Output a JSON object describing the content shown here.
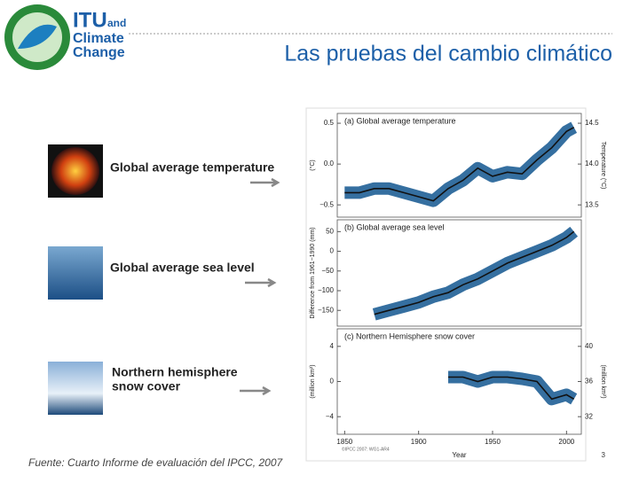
{
  "header": {
    "logo": [
      "ITU",
      "and",
      "Climate",
      "Change"
    ],
    "title": "Las pruebas del cambio climático"
  },
  "items": [
    {
      "label": [
        "Global average temperature"
      ]
    },
    {
      "label": [
        "Global average sea level"
      ]
    },
    {
      "label": [
        "Northern hemisphere",
        "snow cover"
      ]
    }
  ],
  "footer": {
    "source": "Fuente: Cuarto Informe de evaluación del IPCC, 2007",
    "page": "3"
  },
  "chart_data": [
    {
      "type": "line",
      "title": "(a) Global average temperature",
      "y_label": "(°C)",
      "y2_label": "Temperature (°C)",
      "xlim": [
        1845,
        2010
      ],
      "ylim": [
        -0.65,
        0.62
      ],
      "yticks": [
        {
          "value": -0.5,
          "label": "−0.5"
        },
        {
          "value": 0,
          "label": "0.0"
        },
        0.5
      ],
      "y2lim": [
        13.35,
        14.62
      ],
      "y2ticks": [
        13.5,
        {
          "value": 14,
          "label": "14.0"
        },
        14.5
      ],
      "x": [
        1850,
        1860,
        1870,
        1880,
        1890,
        1900,
        1910,
        1920,
        1930,
        1940,
        1950,
        1960,
        1970,
        1980,
        1990,
        2000,
        2005
      ],
      "series": [
        {
          "color": "#1f5f96",
          "values": [
            -0.35,
            -0.35,
            -0.3,
            -0.3,
            -0.35,
            -0.4,
            -0.45,
            -0.3,
            -0.2,
            -0.05,
            -0.15,
            -0.1,
            -0.12,
            0.05,
            0.2,
            0.4,
            0.45
          ]
        }
      ]
    },
    {
      "type": "line",
      "title": "(b) Global average sea level",
      "y_label": "Difference from 1961−1990 (mm)",
      "xlim": [
        1845,
        2010
      ],
      "ylim": [
        -190,
        80
      ],
      "yticks": [
        {
          "value": -150,
          "label": "−150"
        },
        {
          "value": -100,
          "label": "−100"
        },
        {
          "value": -50,
          "label": "−50"
        },
        0,
        50
      ],
      "x": [
        1870,
        1880,
        1890,
        1900,
        1910,
        1920,
        1930,
        1940,
        1950,
        1960,
        1970,
        1980,
        1990,
        2000,
        2005
      ],
      "series": [
        {
          "color": "#1f5f96",
          "values": [
            -160,
            -150,
            -140,
            -130,
            -115,
            -105,
            -85,
            -70,
            -50,
            -30,
            -15,
            0,
            15,
            35,
            50
          ]
        }
      ]
    },
    {
      "type": "line",
      "title": "(c) Northern Hemisphere snow cover",
      "y_label": "(million km²)",
      "y2_label": "(million km²)",
      "x_label": "Year",
      "credit": "©IPCC 2007: WG1-AR4",
      "xlim": [
        1845,
        2010
      ],
      "xticks": [
        1850,
        1900,
        1950,
        2000
      ],
      "ylim": [
        -6,
        6
      ],
      "yticks": [
        {
          "value": -4,
          "label": "−4"
        },
        0,
        4
      ],
      "y2lim": [
        30,
        42
      ],
      "y2ticks": [
        32,
        36,
        40
      ],
      "x": [
        1920,
        1930,
        1940,
        1950,
        1960,
        1970,
        1980,
        1990,
        2000,
        2005
      ],
      "series": [
        {
          "color": "#1f5f96",
          "values": [
            0.5,
            0.5,
            0,
            0.5,
            0.5,
            0.3,
            0,
            -2,
            -1.5,
            -2
          ]
        }
      ]
    }
  ]
}
